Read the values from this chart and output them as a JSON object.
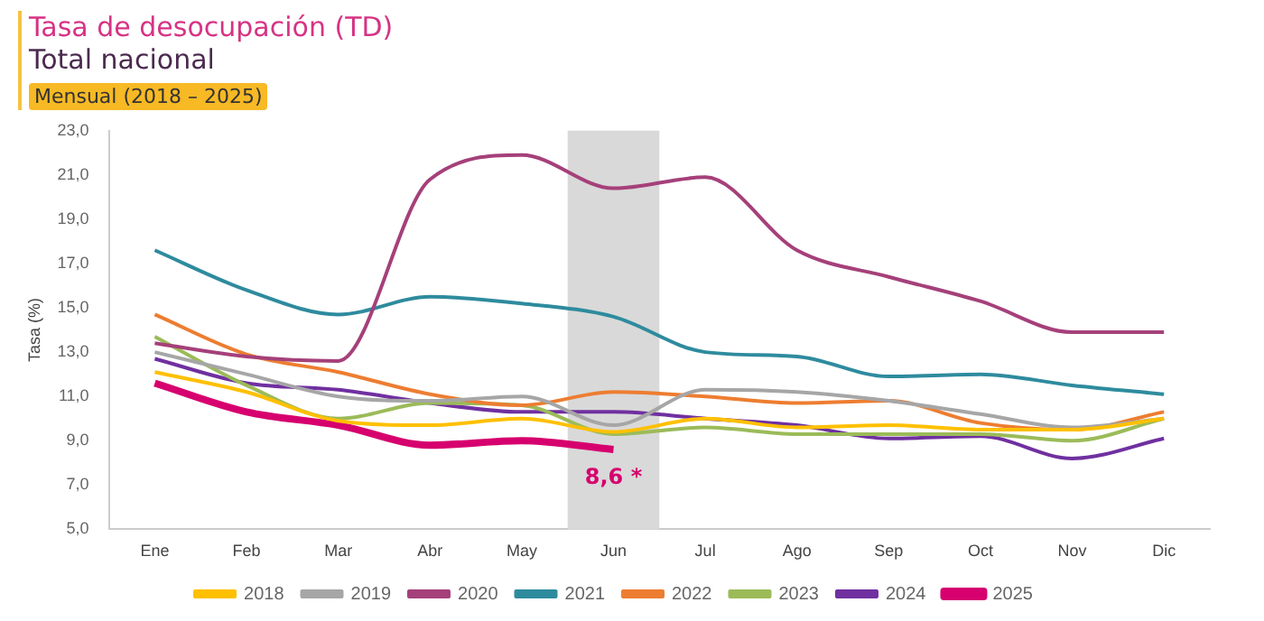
{
  "chart_data": {
    "type": "line",
    "title": "Tasa de desocupación (TD)",
    "subtitle": "Total nacional",
    "ylabel": "Tasa (%)",
    "categories": [
      "Ene",
      "Feb",
      "Mar",
      "Abr",
      "May",
      "Jun",
      "Jul",
      "Ago",
      "Sep",
      "Oct",
      "Nov",
      "Dic"
    ],
    "series": [
      {
        "name": "2018",
        "color": "#ffc000",
        "values": [
          12.1,
          11.2,
          9.9,
          9.7,
          10.0,
          9.4,
          10.0,
          9.6,
          9.7,
          9.5,
          9.5,
          10.0
        ]
      },
      {
        "name": "2019",
        "color": "#a6a6a6",
        "values": [
          13.0,
          12.0,
          11.0,
          10.8,
          11.0,
          9.7,
          11.3,
          11.2,
          10.8,
          10.2,
          9.6,
          10.0
        ]
      },
      {
        "name": "2020",
        "color": "#a5407a",
        "values": [
          13.4,
          12.8,
          12.6,
          20.8,
          21.9,
          20.4,
          20.9,
          17.6,
          16.4,
          15.3,
          13.9,
          13.9
        ]
      },
      {
        "name": "2021",
        "color": "#2e8b9e",
        "values": [
          17.6,
          15.8,
          14.7,
          15.5,
          15.2,
          14.6,
          13.0,
          12.8,
          11.9,
          12.0,
          11.5,
          11.1
        ]
      },
      {
        "name": "2022",
        "color": "#ed7d31",
        "values": [
          14.7,
          12.9,
          12.1,
          11.1,
          10.6,
          11.2,
          11.0,
          10.7,
          10.8,
          9.8,
          9.5,
          10.3
        ]
      },
      {
        "name": "2023",
        "color": "#9bbb59",
        "values": [
          13.7,
          11.5,
          10.0,
          10.7,
          10.6,
          9.3,
          9.6,
          9.3,
          9.3,
          9.3,
          9.0,
          10.0
        ]
      },
      {
        "name": "2024",
        "color": "#7030a0",
        "values": [
          12.7,
          11.6,
          11.3,
          10.7,
          10.3,
          10.3,
          10.0,
          9.7,
          9.1,
          9.2,
          8.2,
          9.1
        ]
      },
      {
        "name": "2025",
        "color": "#d6006e",
        "values": [
          11.6,
          10.3,
          9.7,
          8.8,
          9.0,
          8.6,
          null,
          null,
          null,
          null,
          null,
          null
        ]
      }
    ],
    "ylim": [
      5,
      23
    ],
    "yticks": [
      {
        "value": 5,
        "label": "5,0"
      },
      {
        "value": 7,
        "label": "7,0"
      },
      {
        "value": 9,
        "label": "9,0"
      },
      {
        "value": 11,
        "label": "11,0"
      },
      {
        "value": 13,
        "label": "13,0"
      },
      {
        "value": 15,
        "label": "15,0"
      },
      {
        "value": 17,
        "label": "17,0"
      },
      {
        "value": 19,
        "label": "19,0"
      },
      {
        "value": 21,
        "label": "21,0"
      },
      {
        "value": 23,
        "label": "23,0"
      }
    ],
    "bands": [
      {
        "axis": "x",
        "from": "Jun",
        "to": "Jun",
        "color": "#d9d9d9"
      }
    ],
    "annotations": [
      "Mensual (2018 – 2025)",
      {
        "text": "8,6 *",
        "x": "Jun",
        "y": 8.6
      }
    ],
    "grid": false,
    "legend": "bottom",
    "marker": "none",
    "line_style": "solid"
  }
}
